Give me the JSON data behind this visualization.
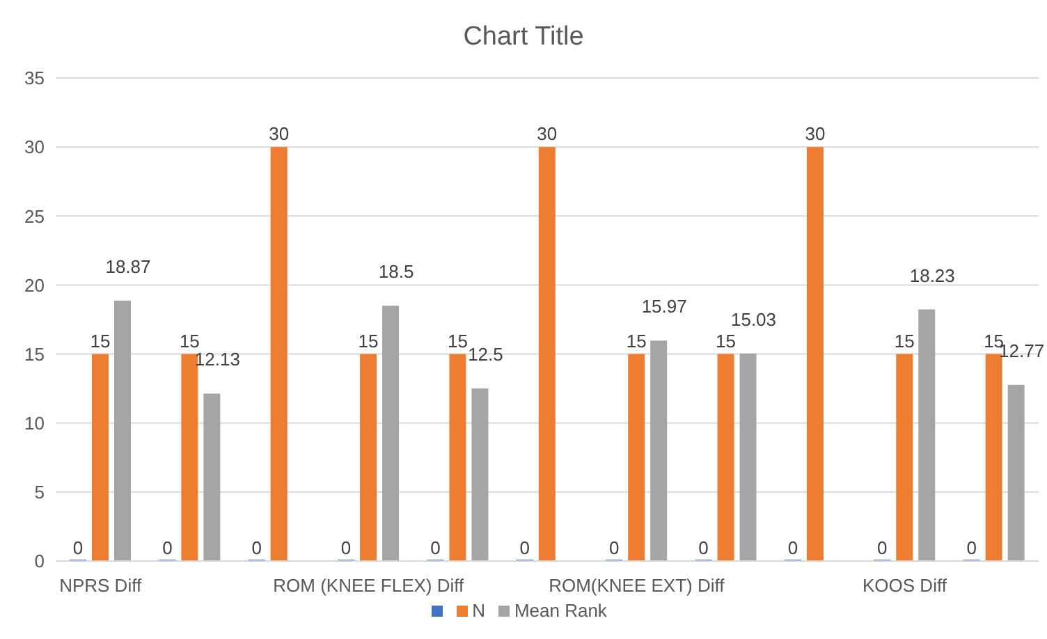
{
  "chart_data": {
    "type": "bar",
    "title": "Chart Title",
    "categories": [
      "NPRS Diff",
      null,
      null,
      "ROM (KNEE FLEX) Diff",
      null,
      null,
      "ROM(KNEE EXT) Diff",
      null,
      null,
      "KOOS  Diff",
      null
    ],
    "series": [
      {
        "color": "#4472c4",
        "values": [
          0,
          0,
          0,
          0,
          0,
          0,
          0,
          0,
          0,
          0,
          0
        ]
      },
      {
        "name": "N",
        "color": "#ed7d31",
        "values": [
          15,
          15,
          30,
          15,
          15,
          30,
          15,
          15,
          30,
          15,
          15
        ]
      },
      {
        "name": "Mean Rank",
        "color": "#a5a5a5",
        "values": [
          18.87,
          12.13,
          null,
          18.5,
          12.5,
          null,
          15.97,
          15.03,
          null,
          18.23,
          12.77
        ]
      }
    ],
    "ylim": [
      0,
      35
    ],
    "yticks": [
      0,
      5,
      10,
      15,
      20,
      25,
      30,
      35
    ],
    "grid": "y",
    "legend": "bottom",
    "data_labels": true
  }
}
